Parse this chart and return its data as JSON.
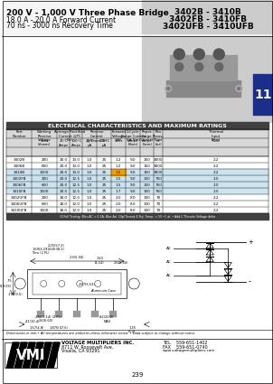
{
  "title_line1": "200 V - 1,000 V Three Phase Bridge",
  "title_line2": "18.0 A - 20.0 A Forward Current",
  "title_line3": "70 ns - 3000 ns Recovery Time",
  "part_numbers": [
    "3402B - 3410B",
    "3402FB - 3410FB",
    "3402UFB - 3410UFB"
  ],
  "page_number": "11",
  "table_header": "ELECTRICAL CHARACTERISTICS AND MAXIMUM RATINGS",
  "rows": [
    {
      "part": "3402B",
      "vrwm": "200",
      "io25": "20.0",
      "io100": "13.0",
      "ir25": "1.0",
      "ir100": "25",
      "vf": "1.2",
      "ifsm": "9.0",
      "irrm": "150",
      "trr": "3000",
      "theta": "2.2"
    },
    {
      "part": "3406B",
      "vrwm": "600",
      "io25": "20.0",
      "io100": "13.0",
      "ir25": "1.0",
      "ir100": "25",
      "vf": "1.2",
      "ifsm": "9.0",
      "irrm": "150",
      "trr": "3000",
      "theta": "2.2"
    },
    {
      "part": "3410B",
      "vrwm": "1000",
      "io25": "20.0",
      "io100": "13.0",
      "ir25": "1.0",
      "ir100": "25",
      "vf": "1.5",
      "ifsm": "9.0",
      "irrm": "150",
      "trr": "3000",
      "theta": "2.2"
    },
    {
      "part": "3402FB",
      "vrwm": "200",
      "io25": "20.0",
      "io100": "12.5",
      "ir25": "1.0",
      "ir100": "25",
      "vf": "1.5",
      "ifsm": "9.0",
      "irrm": "100",
      "trr": "750",
      "theta": "2.0"
    },
    {
      "part": "3406FB",
      "vrwm": "600",
      "io25": "20.0",
      "io100": "12.5",
      "ir25": "1.0",
      "ir100": "25",
      "vf": "1.5",
      "ifsm": "9.0",
      "irrm": "100",
      "trr": "750",
      "theta": "2.0"
    },
    {
      "part": "3410FB",
      "vrwm": "1000",
      "io25": "20.0",
      "io100": "12.5",
      "ir25": "1.0",
      "ir100": "25",
      "vf": "1.7",
      "ifsm": "9.0",
      "irrm": "100",
      "trr": "750",
      "theta": "2.0"
    },
    {
      "part": "3402UFB",
      "vrwm": "200",
      "io25": "18.0",
      "io100": "12.0",
      "ir25": "1.0",
      "ir100": "25",
      "vf": "2.0",
      "ifsm": "8.0",
      "irrm": "100",
      "trr": "70",
      "theta": "2.2"
    },
    {
      "part": "3406UFB",
      "vrwm": "600",
      "io25": "18.0",
      "io100": "12.0",
      "ir25": "1.0",
      "ir100": "25",
      "vf": "2.0",
      "ifsm": "8.0",
      "irrm": "100",
      "trr": "70",
      "theta": "2.2"
    },
    {
      "part": "3410UFB",
      "vrwm": "1000",
      "io25": "18.0",
      "io100": "12.0",
      "ir25": "1.0",
      "ir100": "25",
      "vf": "2.0",
      "ifsm": "8.0",
      "irrm": "100",
      "trr": "70",
      "theta": "2.2"
    }
  ],
  "footnote": "(1)Full Testing: Bloc-AC = 0.1A, Bloc-Ad  10pl Tested 4.9ty; Temp. = 55~C al. • Add-C Thesole Voltage defor",
  "dim_note": "Dimensions in mm • All temperatures are ambient unless otherwise noted. • Data subject to change without notice.",
  "company_name": "VOLTAGE MULTIPLIERS INC.",
  "company_addr1": "8711 W. Roosevelt Ave.",
  "company_addr2": "Visalia, CA 93291",
  "tel": "TEL    559-651-1402",
  "fax": "FAX    559-651-0740",
  "web": "www.voltagemultipliers.com",
  "page_bottom": "239",
  "bg_color": "#ffffff",
  "table_header_bg": "#404040",
  "table_header_fg": "#ffffff",
  "highlight_blue": "#cde4f0",
  "highlight_orange": "#f0a000",
  "blue_rows": [
    "3410B",
    "3402FB",
    "3406FB",
    "3410FB"
  ]
}
